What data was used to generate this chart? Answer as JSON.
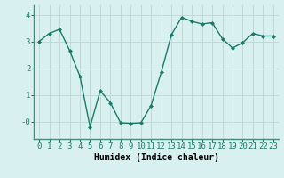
{
  "x": [
    0,
    1,
    2,
    3,
    4,
    5,
    6,
    7,
    8,
    9,
    10,
    11,
    12,
    13,
    14,
    15,
    16,
    17,
    18,
    19,
    20,
    21,
    22,
    23
  ],
  "y": [
    3.0,
    3.3,
    3.45,
    2.65,
    1.7,
    -0.2,
    1.15,
    0.7,
    -0.05,
    -0.07,
    -0.05,
    0.6,
    1.85,
    3.25,
    3.9,
    3.75,
    3.65,
    3.7,
    3.1,
    2.75,
    2.95,
    3.3,
    3.2,
    3.2
  ],
  "line_color": "#1a7a6a",
  "marker": "D",
  "marker_size": 2.0,
  "linewidth": 1.0,
  "bg_color": "#d9f0f0",
  "grid_color": "#c0d8d8",
  "xlabel": "Humidex (Indice chaleur)",
  "xlim": [
    -0.5,
    23.5
  ],
  "ylim": [
    -0.65,
    4.35
  ],
  "ytick_vals": [
    0,
    1,
    2,
    3,
    4
  ],
  "ytick_labels": [
    "-0",
    "1",
    "2",
    "3",
    "4"
  ],
  "xtick_labels": [
    "0",
    "1",
    "2",
    "3",
    "4",
    "5",
    "6",
    "7",
    "8",
    "9",
    "10",
    "11",
    "12",
    "13",
    "14",
    "15",
    "16",
    "17",
    "18",
    "19",
    "20",
    "21",
    "22",
    "23"
  ],
  "xlabel_fontsize": 7,
  "tick_fontsize": 6.5
}
